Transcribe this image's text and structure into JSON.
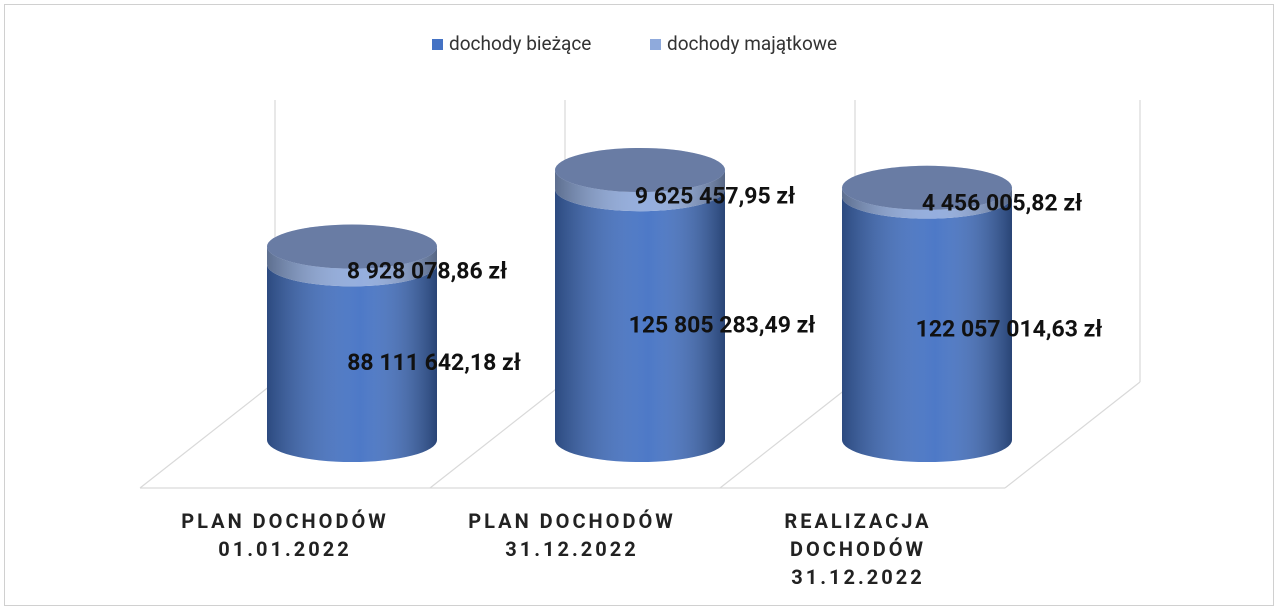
{
  "chart_data": {
    "type": "cylinder-stacked",
    "categories": [
      "PLAN DOCHODÓW 01.01.2022",
      "PLAN DOCHODÓW 31.12.2022",
      "REALIZACJA DOCHODÓW 31.12.2022"
    ],
    "series": [
      {
        "name": "dochody bieżące",
        "color": "#4472c4",
        "values": [
          88111642.18,
          125805283.49,
          122057014.63
        ],
        "value_labels": [
          "88 111 642,18 zł",
          "125 805 283,49 zł",
          "122 057 014,63 zł"
        ]
      },
      {
        "name": "dochody majątkowe",
        "color": "#8faadc",
        "values": [
          8928078.86,
          9625457.95,
          4456005.82
        ],
        "value_labels": [
          "8 928 078,86 zł",
          "9 625 457,95 zł",
          "4 456 005,82 zł"
        ]
      }
    ],
    "legend": "top"
  }
}
